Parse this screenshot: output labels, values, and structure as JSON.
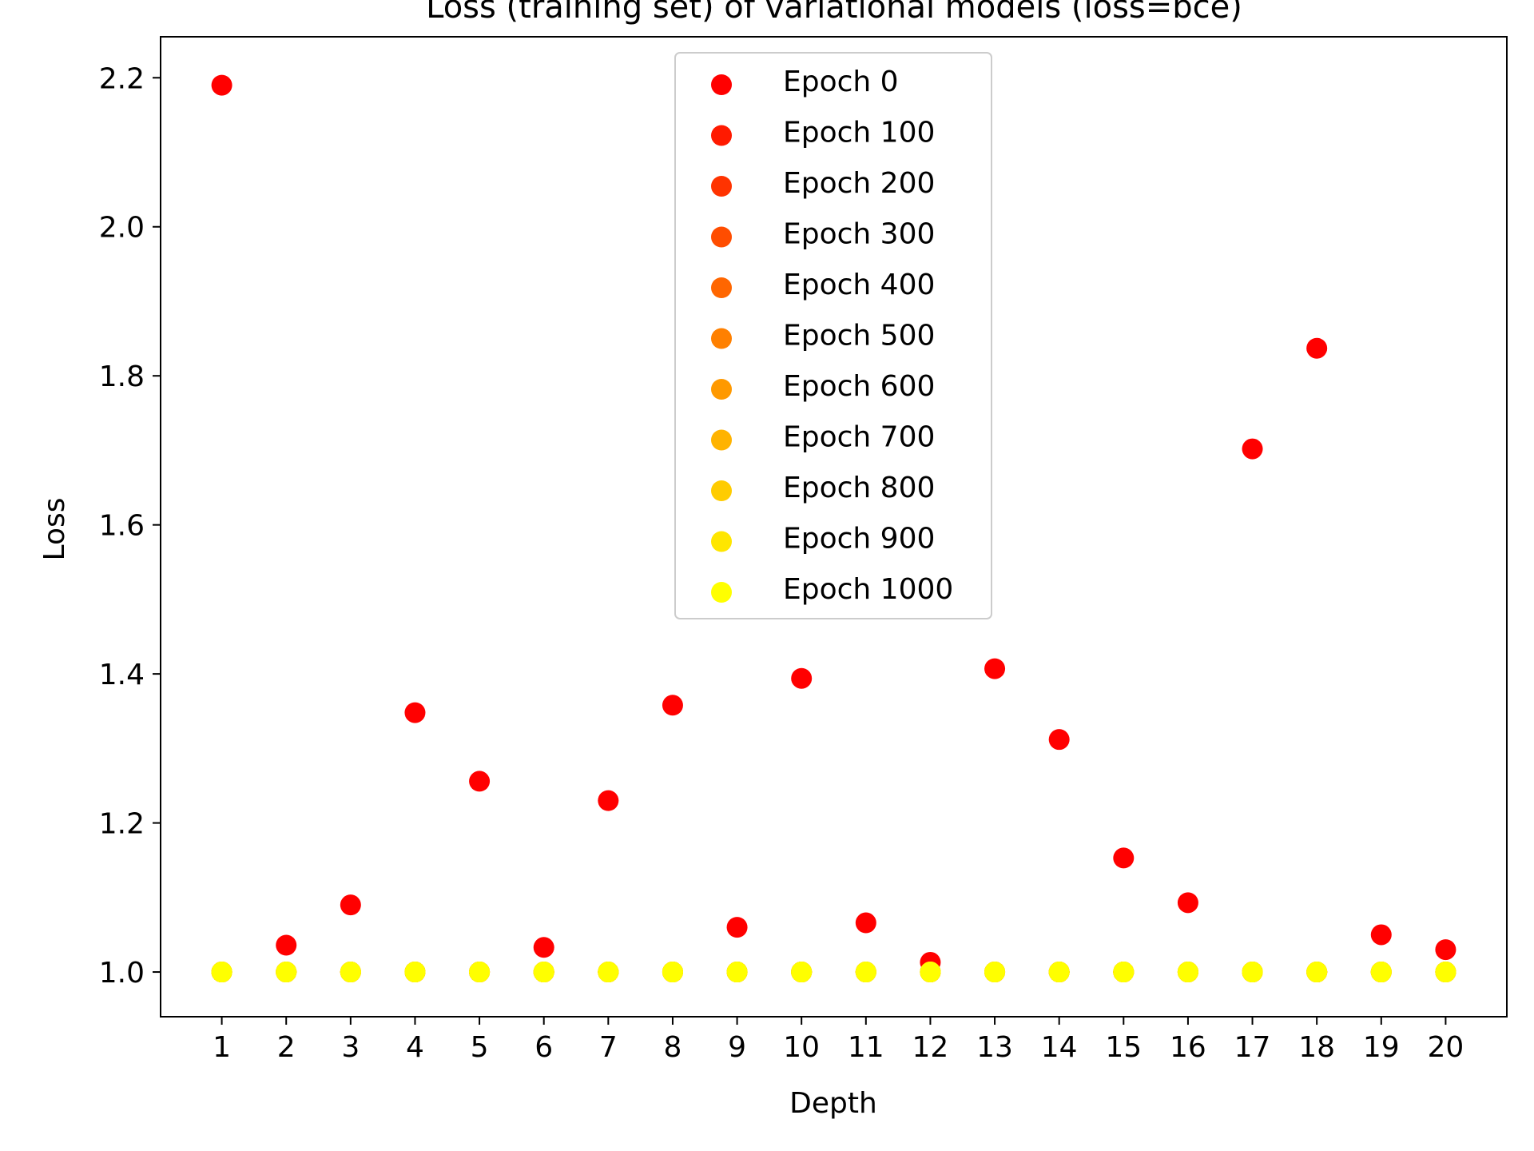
{
  "chart_data": {
    "type": "scatter",
    "title": "Loss (training set) of variational models (loss=bce)",
    "xlabel": "Depth",
    "ylabel": "Loss",
    "xlim": [
      0.05,
      20.95
    ],
    "ylim": [
      0.94,
      2.255
    ],
    "xticks": [
      1,
      2,
      3,
      4,
      5,
      6,
      7,
      8,
      9,
      10,
      11,
      12,
      13,
      14,
      15,
      16,
      17,
      18,
      19,
      20
    ],
    "yticks": [
      1.0,
      1.2,
      1.4,
      1.6,
      1.8,
      2.0,
      2.2
    ],
    "grid": false,
    "legend_position": "top-center",
    "x": [
      1,
      2,
      3,
      4,
      5,
      6,
      7,
      8,
      9,
      10,
      11,
      12,
      13,
      14,
      15,
      16,
      17,
      18,
      19,
      20
    ],
    "series": [
      {
        "name": "Epoch 0",
        "color": "#ff0000",
        "values": [
          2.19,
          1.036,
          1.09,
          1.348,
          1.256,
          1.033,
          1.23,
          1.358,
          1.06,
          1.394,
          1.066,
          1.013,
          1.407,
          1.312,
          1.153,
          1.093,
          1.702,
          1.837,
          1.05,
          1.03
        ]
      },
      {
        "name": "Epoch 100",
        "color": "#ff1a00",
        "values": [
          1.0,
          1.0,
          1.0,
          1.0,
          1.0,
          1.0,
          1.0,
          1.0,
          1.0,
          1.0,
          1.0,
          1.0,
          1.0,
          1.0,
          1.0,
          1.0,
          1.0,
          1.0,
          1.0,
          1.0
        ]
      },
      {
        "name": "Epoch 200",
        "color": "#ff3300",
        "values": [
          1.0,
          1.0,
          1.0,
          1.0,
          1.0,
          1.0,
          1.0,
          1.0,
          1.0,
          1.0,
          1.0,
          1.0,
          1.0,
          1.0,
          1.0,
          1.0,
          1.0,
          1.0,
          1.0,
          1.0
        ]
      },
      {
        "name": "Epoch 300",
        "color": "#ff4d00",
        "values": [
          1.0,
          1.0,
          1.0,
          1.0,
          1.0,
          1.0,
          1.0,
          1.0,
          1.0,
          1.0,
          1.0,
          1.0,
          1.0,
          1.0,
          1.0,
          1.0,
          1.0,
          1.0,
          1.0,
          1.0
        ]
      },
      {
        "name": "Epoch 400",
        "color": "#ff6600",
        "values": [
          1.0,
          1.0,
          1.0,
          1.0,
          1.0,
          1.0,
          1.0,
          1.0,
          1.0,
          1.0,
          1.0,
          1.0,
          1.0,
          1.0,
          1.0,
          1.0,
          1.0,
          1.0,
          1.0,
          1.0
        ]
      },
      {
        "name": "Epoch 500",
        "color": "#ff8000",
        "values": [
          1.0,
          1.0,
          1.0,
          1.0,
          1.0,
          1.0,
          1.0,
          1.0,
          1.0,
          1.0,
          1.0,
          1.0,
          1.0,
          1.0,
          1.0,
          1.0,
          1.0,
          1.0,
          1.0,
          1.0
        ]
      },
      {
        "name": "Epoch 600",
        "color": "#ff9900",
        "values": [
          1.0,
          1.0,
          1.0,
          1.0,
          1.0,
          1.0,
          1.0,
          1.0,
          1.0,
          1.0,
          1.0,
          1.0,
          1.0,
          1.0,
          1.0,
          1.0,
          1.0,
          1.0,
          1.0,
          1.0
        ]
      },
      {
        "name": "Epoch 700",
        "color": "#ffb300",
        "values": [
          1.0,
          1.0,
          1.0,
          1.0,
          1.0,
          1.0,
          1.0,
          1.0,
          1.0,
          1.0,
          1.0,
          1.0,
          1.0,
          1.0,
          1.0,
          1.0,
          1.0,
          1.0,
          1.0,
          1.0
        ]
      },
      {
        "name": "Epoch 800",
        "color": "#ffcc00",
        "values": [
          1.0,
          1.0,
          1.0,
          1.0,
          1.0,
          1.0,
          1.0,
          1.0,
          1.0,
          1.0,
          1.0,
          1.0,
          1.0,
          1.0,
          1.0,
          1.0,
          1.0,
          1.0,
          1.0,
          1.0
        ]
      },
      {
        "name": "Epoch 900",
        "color": "#ffe600",
        "values": [
          1.0,
          1.0,
          1.0,
          1.0,
          1.0,
          1.0,
          1.0,
          1.0,
          1.0,
          1.0,
          1.0,
          1.0,
          1.0,
          1.0,
          1.0,
          1.0,
          1.0,
          1.0,
          1.0,
          1.0
        ]
      },
      {
        "name": "Epoch 1000",
        "color": "#ffff00",
        "values": [
          1.0,
          1.0,
          1.0,
          1.0,
          1.0,
          1.0,
          1.0,
          1.0,
          1.0,
          1.0,
          1.0,
          1.0,
          1.0,
          1.0,
          1.0,
          1.0,
          1.0,
          1.0,
          1.0,
          1.0
        ]
      }
    ]
  }
}
